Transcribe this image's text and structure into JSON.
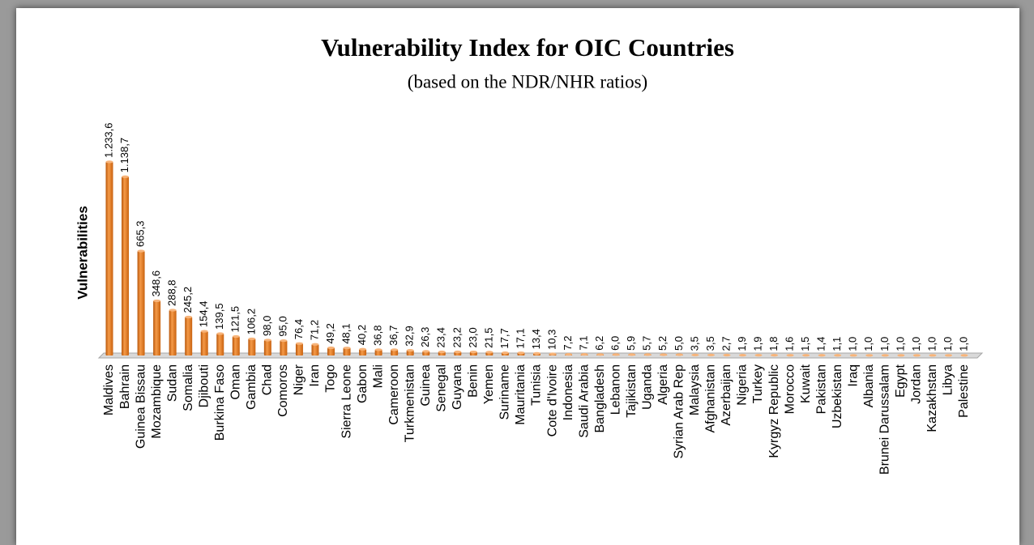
{
  "chart_data": {
    "type": "bar",
    "title": "Vulnerability Index for OIC Countries",
    "subtitle": "(based on the NDR/NHR ratios)",
    "y_label": "Vulnerabilities",
    "color": "#f07f1e",
    "ylim": [
      0,
      1300
    ],
    "categories": [
      "Maldives",
      "Bahrain",
      "Guinea Bissau",
      "Mozambique",
      "Sudan",
      "Somalia",
      "Djibouti",
      "Burkina Faso",
      "Oman",
      "Gambia",
      "Chad",
      "Comoros",
      "Niger",
      "Iran",
      "Togo",
      "Sierra Leone",
      "Gabon",
      "Mali",
      "Cameroon",
      "Turkmenistan",
      "Guinea",
      "Senegal",
      "Guyana",
      "Benin",
      "Yemen",
      "Suriname",
      "Mauritania",
      "Tunisia",
      "Cote d'Ivoire",
      "Indonesia",
      "Saudi Arabia",
      "Bangladesh",
      "Lebanon",
      "Tajikistan",
      "Uganda",
      "Algeria",
      "Syrian Arab Rep",
      "Malaysia",
      "Afghanistan",
      "Azerbaijan",
      "Nigeria",
      "Turkey",
      "Kyrgyz Republic",
      "Morocco",
      "Kuwait",
      "Pakistan",
      "Uzbekistan",
      "Iraq",
      "Albania",
      "Brunei Darussalam",
      "Egypt",
      "Jordan",
      "Kazakhstan",
      "Libya",
      "Palestine"
    ],
    "values": [
      1233.6,
      1138.7,
      665.3,
      348.6,
      288.8,
      245.2,
      154.4,
      139.5,
      121.5,
      106.2,
      98.0,
      95.0,
      76.4,
      71.2,
      49.2,
      48.1,
      40.2,
      36.8,
      36.7,
      32.9,
      26.3,
      23.4,
      23.2,
      23.0,
      21.5,
      17.7,
      17.1,
      13.4,
      10.3,
      7.2,
      7.1,
      6.2,
      6.0,
      5.9,
      5.7,
      5.2,
      5.0,
      3.5,
      3.5,
      2.7,
      1.9,
      1.9,
      1.8,
      1.6,
      1.5,
      1.4,
      1.1,
      1.0,
      1.0,
      1.0,
      1.0,
      1.0,
      1.0,
      1.0,
      1.0
    ],
    "value_labels": [
      "1.233,6",
      "1.138,7",
      "665,3",
      "348,6",
      "288,8",
      "245,2",
      "154,4",
      "139,5",
      "121,5",
      "106,2",
      "98,0",
      "95,0",
      "76,4",
      "71,2",
      "49,2",
      "48,1",
      "40,2",
      "36,8",
      "36,7",
      "32,9",
      "26,3",
      "23,4",
      "23,2",
      "23,0",
      "21,5",
      "17,7",
      "17,1",
      "13,4",
      "10,3",
      "7,2",
      "7,1",
      "6,2",
      "6,0",
      "5,9",
      "5,7",
      "5,2",
      "5,0",
      "3,5",
      "3,5",
      "2,7",
      "1,9",
      "1,9",
      "1,8",
      "1,6",
      "1,5",
      "1,4",
      "1,1",
      "1,0",
      "1,0",
      "1,0",
      "1,0",
      "1,0",
      "1,0",
      "1,0",
      "1,0"
    ]
  }
}
